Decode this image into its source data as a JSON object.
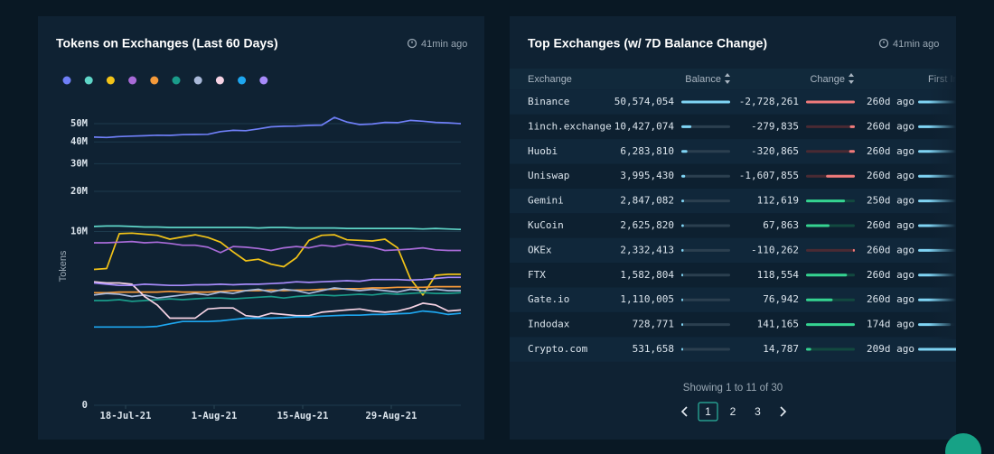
{
  "chart_data": {
    "type": "line",
    "title": "Tokens on Exchanges (Last 60 Days)",
    "ylabel": "Tokens",
    "x": [
      "2021-07-13",
      "2021-07-15",
      "2021-07-17",
      "2021-07-19",
      "2021-07-21",
      "2021-07-23",
      "2021-07-25",
      "2021-07-27",
      "2021-07-29",
      "2021-07-31",
      "2021-08-02",
      "2021-08-04",
      "2021-08-06",
      "2021-08-08",
      "2021-08-10",
      "2021-08-12",
      "2021-08-14",
      "2021-08-16",
      "2021-08-18",
      "2021-08-20",
      "2021-08-22",
      "2021-08-24",
      "2021-08-26",
      "2021-08-28",
      "2021-08-30",
      "2021-09-01",
      "2021-09-03",
      "2021-09-05",
      "2021-09-07",
      "2021-09-09"
    ],
    "xlim": [
      "2021-07-13",
      "2021-09-09"
    ],
    "xticks": [
      {
        "value": "2021-07-18",
        "label": "18-Jul-21"
      },
      {
        "value": "2021-08-01",
        "label": "1-Aug-21"
      },
      {
        "value": "2021-08-15",
        "label": "15-Aug-21"
      },
      {
        "value": "2021-08-29",
        "label": "29-Aug-21"
      }
    ],
    "yscale": "pow",
    "yexponent": 0.3,
    "ylim": [
      0,
      55000000
    ],
    "yticks": [
      0,
      {
        "value": 10000000,
        "label": "10M"
      },
      {
        "value": 20000000,
        "label": "20M"
      },
      {
        "value": 30000000,
        "label": "30M"
      },
      {
        "value": 40000000,
        "label": "40M"
      },
      {
        "value": 50000000,
        "label": "50M"
      }
    ],
    "grid": true,
    "series": [
      {
        "color": "#6f7ff7",
        "values": [
          42500000,
          42300000,
          42800000,
          43000000,
          43200000,
          43500000,
          43400000,
          43800000,
          43900000,
          44000000,
          45500000,
          46200000,
          46000000,
          47000000,
          48200000,
          48500000,
          48600000,
          49000000,
          49200000,
          53800000,
          51000000,
          49500000,
          49800000,
          50800000,
          50600000,
          52000000,
          51500000,
          50800000,
          50500000,
          50000000
        ]
      },
      {
        "color": "#5fd6c8",
        "values": [
          11000000,
          11100000,
          11100000,
          11000000,
          10900000,
          10900000,
          10800000,
          10800000,
          10800000,
          10800000,
          10800000,
          10800000,
          10800000,
          10700000,
          10800000,
          10800000,
          10700000,
          10700000,
          10700000,
          10700000,
          10600000,
          10600000,
          10600000,
          10600000,
          10600000,
          10600000,
          10500000,
          10600000,
          10500000,
          10400000
        ]
      },
      {
        "color": "#f2c318",
        "values": [
          4400000,
          4500000,
          9600000,
          9700000,
          9500000,
          9300000,
          8600000,
          9000000,
          9400000,
          8900000,
          8100000,
          6600000,
          5400000,
          5600000,
          5000000,
          4700000,
          5800000,
          8400000,
          9300000,
          9400000,
          8500000,
          8400000,
          8300000,
          8600000,
          7200000,
          3500000,
          2200000,
          3800000,
          3900000,
          3900000
        ]
      },
      {
        "color": "#a86bd8",
        "values": [
          8000000,
          8000000,
          8100000,
          8200000,
          8000000,
          8100000,
          7900000,
          7600000,
          7600000,
          7300000,
          6500000,
          7400000,
          7300000,
          7100000,
          6800000,
          7200000,
          7400000,
          7200000,
          7600000,
          7400000,
          7800000,
          7500000,
          7300000,
          6800000,
          6900000,
          7000000,
          7200000,
          6900000,
          6800000,
          6800000
        ]
      },
      {
        "color": "#f59a3a",
        "values": [
          2350000,
          2350000,
          2400000,
          2400000,
          2400000,
          2400000,
          2450000,
          2400000,
          2400000,
          2400000,
          2450000,
          2500000,
          2500000,
          2500000,
          2550000,
          2500000,
          2550000,
          2550000,
          2600000,
          2600000,
          2650000,
          2650000,
          2700000,
          2700000,
          2750000,
          2750000,
          2750000,
          2800000,
          2800000,
          2800000
        ]
      },
      {
        "color": "#1a9c8a",
        "values": [
          1850000,
          1850000,
          1900000,
          1800000,
          1850000,
          1900000,
          1950000,
          1900000,
          1950000,
          2000000,
          2000000,
          1950000,
          2000000,
          2050000,
          2100000,
          2000000,
          2100000,
          2150000,
          2200000,
          2150000,
          2200000,
          2250000,
          2200000,
          2300000,
          2250000,
          2300000,
          2350000,
          2300000,
          2300000,
          2350000
        ]
      },
      {
        "color": "#a9b9d9",
        "values": [
          2200000,
          2300000,
          2250000,
          2100000,
          2200000,
          2000000,
          2100000,
          2200000,
          2300000,
          2200000,
          2400000,
          2300000,
          2500000,
          2600000,
          2400000,
          2600000,
          2500000,
          2300000,
          2500000,
          2700000,
          2600000,
          2500000,
          2600000,
          2500000,
          2400000,
          2600000,
          2500000,
          2600000,
          2500000,
          2500000
        ]
      },
      {
        "color": "#f6d3e4",
        "values": [
          3200000,
          3100000,
          3100000,
          3000000,
          2100000,
          1600000,
          1000000,
          1000000,
          1000000,
          1400000,
          1450000,
          1450000,
          1100000,
          1050000,
          1200000,
          1150000,
          1100000,
          1100000,
          1250000,
          1300000,
          1350000,
          1400000,
          1300000,
          1250000,
          1300000,
          1450000,
          1700000,
          1600000,
          1300000,
          1350000
        ]
      },
      {
        "color": "#1ea7f0",
        "values": [
          700000,
          700000,
          700000,
          700000,
          700000,
          720000,
          800000,
          880000,
          880000,
          880000,
          900000,
          950000,
          1000000,
          1000000,
          1000000,
          1020000,
          1050000,
          1050000,
          1080000,
          1100000,
          1120000,
          1120000,
          1150000,
          1150000,
          1180000,
          1200000,
          1300000,
          1250000,
          1150000,
          1200000
        ]
      },
      {
        "color": "#a78bfa",
        "values": [
          3100000,
          3000000,
          2900000,
          2900000,
          3000000,
          2950000,
          2900000,
          2900000,
          2950000,
          2950000,
          3000000,
          2950000,
          3000000,
          3000000,
          3050000,
          3100000,
          3200000,
          3150000,
          3200000,
          3250000,
          3300000,
          3250000,
          3400000,
          3400000,
          3400000,
          3350000,
          3400000,
          3500000,
          3600000,
          3600000
        ]
      }
    ]
  },
  "tokens_panel": {
    "updated": "41min ago"
  },
  "exchanges_panel": {
    "title": "Top Exchanges (w/ 7D Balance Change)",
    "updated": "41min ago",
    "table": {
      "columns": [
        "Exchange",
        "Balance",
        "Change",
        "First In"
      ],
      "rows": [
        {
          "exchange": "Binance",
          "balance": {
            "value": 50574054,
            "label": "50,574,054"
          },
          "change": {
            "value": -2728261,
            "label": "-2,728,261"
          },
          "first_in": {
            "value": 260,
            "label": "260d ago"
          }
        },
        {
          "exchange": "1inch.exchange",
          "balance": {
            "value": 10427074,
            "label": "10,427,074"
          },
          "change": {
            "value": -279835,
            "label": "-279,835"
          },
          "first_in": {
            "value": 260,
            "label": "260d ago"
          }
        },
        {
          "exchange": "Huobi",
          "balance": {
            "value": 6283810,
            "label": "6,283,810"
          },
          "change": {
            "value": -320865,
            "label": "-320,865"
          },
          "first_in": {
            "value": 260,
            "label": "260d ago"
          }
        },
        {
          "exchange": "Uniswap",
          "balance": {
            "value": 3995430,
            "label": "3,995,430"
          },
          "change": {
            "value": -1607855,
            "label": "-1,607,855"
          },
          "first_in": {
            "value": 260,
            "label": "260d ago"
          }
        },
        {
          "exchange": "Gemini",
          "balance": {
            "value": 2847082,
            "label": "2,847,082"
          },
          "change": {
            "value": 112619,
            "label": "112,619"
          },
          "first_in": {
            "value": 250,
            "label": "250d ago"
          }
        },
        {
          "exchange": "KuCoin",
          "balance": {
            "value": 2625820,
            "label": "2,625,820"
          },
          "change": {
            "value": 67863,
            "label": "67,863"
          },
          "first_in": {
            "value": 260,
            "label": "260d ago"
          }
        },
        {
          "exchange": "OKEx",
          "balance": {
            "value": 2332413,
            "label": "2,332,413"
          },
          "change": {
            "value": -110262,
            "label": "-110,262"
          },
          "first_in": {
            "value": 260,
            "label": "260d ago"
          }
        },
        {
          "exchange": "FTX",
          "balance": {
            "value": 1582804,
            "label": "1,582,804"
          },
          "change": {
            "value": 118554,
            "label": "118,554"
          },
          "first_in": {
            "value": 260,
            "label": "260d ago"
          }
        },
        {
          "exchange": "Gate.io",
          "balance": {
            "value": 1110005,
            "label": "1,110,005"
          },
          "change": {
            "value": 76942,
            "label": "76,942"
          },
          "first_in": {
            "value": 260,
            "label": "260d ago"
          }
        },
        {
          "exchange": "Indodax",
          "balance": {
            "value": 728771,
            "label": "728,771"
          },
          "change": {
            "value": 141165,
            "label": "141,165"
          },
          "first_in": {
            "value": 174,
            "label": "174d ago"
          }
        },
        {
          "exchange": "Crypto.com",
          "balance": {
            "value": 531658,
            "label": "531,658"
          },
          "change": {
            "value": 14787,
            "label": "14,787"
          },
          "first_in": {
            "value": 209,
            "label": "209d ago"
          }
        }
      ]
    },
    "pagination": {
      "summary": "Showing 1 to 11 of 30",
      "pages": [
        "1",
        "2",
        "3"
      ]
    }
  }
}
